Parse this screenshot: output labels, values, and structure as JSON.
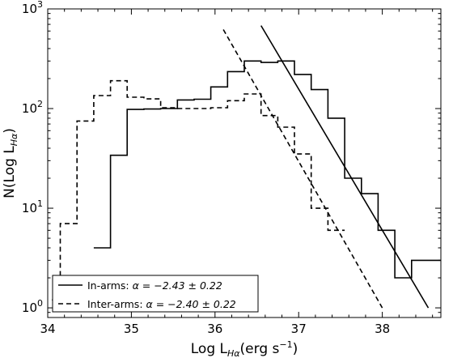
{
  "chart_data": {
    "type": "line",
    "xlabel": "Log L",
    "xlabel_sub": "Hα",
    "xlabel_unit": "(erg s",
    "xlabel_unit_sup": "−1",
    "xlabel_unit_close": ")",
    "ylabel": "N(Log L",
    "ylabel_sub": "Hα",
    "ylabel_close": ")",
    "xlim": [
      34,
      38.7
    ],
    "ylim": [
      0.8,
      1000
    ],
    "yscale": "log",
    "xticks": [
      "34",
      "35",
      "36",
      "37",
      "38"
    ],
    "xtick_values": [
      34,
      35,
      36,
      37,
      38
    ],
    "yticks": [
      {
        "value": 1,
        "base": "10",
        "exp": "0"
      },
      {
        "value": 10,
        "base": "10",
        "exp": "1"
      },
      {
        "value": 100,
        "base": "10",
        "exp": "2"
      },
      {
        "value": 1000,
        "base": "10",
        "exp": "3"
      }
    ],
    "grid": false,
    "legend_position": "bottom-left",
    "series": [
      {
        "name": "In-arms",
        "alpha_text": "α = −2.43 ± 0.22",
        "style": "solid-step",
        "color": "#000000",
        "bin_edges": [
          34.55,
          34.75,
          34.95,
          35.15,
          35.35,
          35.55,
          35.75,
          35.95,
          36.15,
          36.35,
          36.55,
          36.75,
          36.95,
          37.15,
          37.35,
          37.55,
          37.75,
          37.95,
          38.15,
          38.35,
          38.7
        ],
        "counts": [
          4,
          34,
          98,
          99,
          100,
          122,
          124,
          165,
          235,
          300,
          290,
          300,
          220,
          155,
          80,
          20,
          14,
          6,
          2,
          3
        ]
      },
      {
        "name": "Inter-arms",
        "alpha_text": "α = −2.40 ± 0.22",
        "style": "dashed-step",
        "color": "#000000",
        "bin_edges": [
          34.05,
          34.15,
          34.35,
          34.55,
          34.75,
          34.95,
          35.15,
          35.35,
          35.55,
          35.75,
          35.95,
          36.15,
          36.35,
          36.55,
          36.75,
          36.95,
          37.15,
          37.35,
          37.55
        ],
        "counts": [
          1.2,
          7,
          75,
          135,
          190,
          130,
          125,
          102,
          100,
          100,
          102,
          120,
          140,
          85,
          65,
          35,
          10,
          6
        ]
      },
      {
        "name": "In-arms fit",
        "style": "solid-line",
        "color": "#000000",
        "x": [
          36.55,
          38.55
        ],
        "y": [
          680,
          1
        ]
      },
      {
        "name": "Inter-arms fit",
        "style": "dashed-line",
        "color": "#000000",
        "x": [
          36.1,
          38.0
        ],
        "y": [
          620,
          1
        ]
      }
    ]
  }
}
